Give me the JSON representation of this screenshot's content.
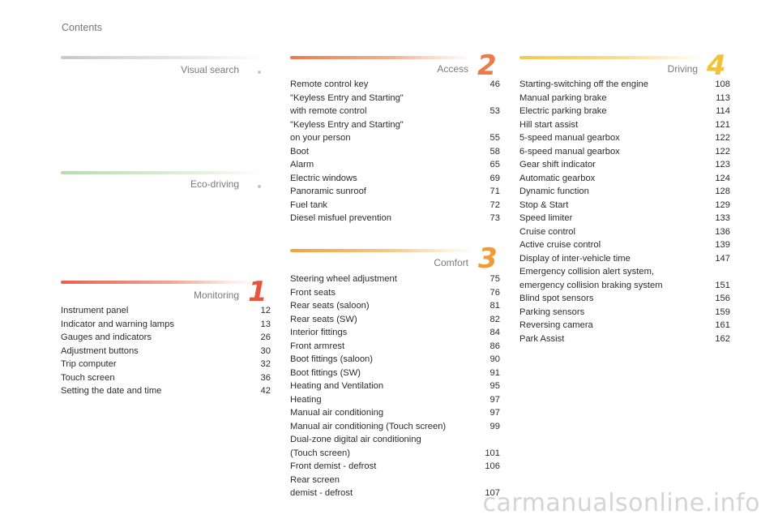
{
  "page_title": "Contents",
  "watermark": "carmanualsonline.info",
  "visual_search": {
    "title": "Visual search",
    "bar_color": "#bdbdbd"
  },
  "eco_driving": {
    "title": "Eco-driving",
    "bar_color": "#b9dcb0"
  },
  "monitoring": {
    "title": "Monitoring",
    "number": "1",
    "bar_color": "#e8604a",
    "items": [
      {
        "label": "Instrument panel",
        "page": "12"
      },
      {
        "label": "Indicator and warning lamps",
        "page": "13"
      },
      {
        "label": "Gauges and indicators",
        "page": "26"
      },
      {
        "label": "Adjustment buttons",
        "page": "30"
      },
      {
        "label": "Trip computer",
        "page": "32"
      },
      {
        "label": "Touch screen",
        "page": "36"
      },
      {
        "label": "Setting the date and time",
        "page": "42"
      }
    ]
  },
  "access": {
    "title": "Access",
    "number": "2",
    "bar_color": "#ef8a5a",
    "items": [
      {
        "label": "Remote control key",
        "page": "46"
      },
      {
        "label": "\"Keyless Entry and Starting\"\n   with remote control",
        "page": "53"
      },
      {
        "label": "\"Keyless Entry and Starting\"\n   on your person",
        "page": "55"
      },
      {
        "label": "Boot",
        "page": "58"
      },
      {
        "label": "Alarm",
        "page": "65"
      },
      {
        "label": "Electric windows",
        "page": "69"
      },
      {
        "label": "Panoramic sunroof",
        "page": "71"
      },
      {
        "label": "Fuel tank",
        "page": "72"
      },
      {
        "label": "Diesel misfuel prevention",
        "page": "73"
      }
    ]
  },
  "comfort": {
    "title": "Comfort",
    "number": "3",
    "bar_color": "#f4a13e",
    "items": [
      {
        "label": "Steering wheel adjustment",
        "page": "75"
      },
      {
        "label": "Front seats",
        "page": "76"
      },
      {
        "label": "Rear seats (saloon)",
        "page": "81"
      },
      {
        "label": "Rear seats (SW)",
        "page": "82"
      },
      {
        "label": "Interior fittings",
        "page": "84"
      },
      {
        "label": "Front armrest",
        "page": "86"
      },
      {
        "label": "Boot fittings (saloon)",
        "page": "90"
      },
      {
        "label": "Boot fittings (SW)",
        "page": "91"
      },
      {
        "label": "Heating and Ventilation",
        "page": "95"
      },
      {
        "label": "Heating",
        "page": "97"
      },
      {
        "label": "Manual air conditioning",
        "page": "97"
      },
      {
        "label": "Manual air conditioning (Touch screen)",
        "page": "99"
      },
      {
        "label": "Dual-zone digital air conditioning\n   (Touch screen)",
        "page": "101"
      },
      {
        "label": "Front demist - defrost",
        "page": "106"
      },
      {
        "label": "Rear screen\n   demist - defrost",
        "page": "107"
      }
    ]
  },
  "driving": {
    "title": "Driving",
    "number": "4",
    "bar_color": "#f6c84a",
    "items": [
      {
        "label": "Starting-switching off the engine",
        "page": "108"
      },
      {
        "label": "Manual parking brake",
        "page": "113"
      },
      {
        "label": "Electric parking brake",
        "page": "114"
      },
      {
        "label": "Hill start assist",
        "page": "121"
      },
      {
        "label": "5-speed manual gearbox",
        "page": "122"
      },
      {
        "label": "6-speed manual gearbox",
        "page": "122"
      },
      {
        "label": "Gear shift indicator",
        "page": "123"
      },
      {
        "label": "Automatic gearbox",
        "page": "124"
      },
      {
        "label": "Dynamic function",
        "page": "128"
      },
      {
        "label": "Stop & Start",
        "page": "129"
      },
      {
        "label": "Speed limiter",
        "page": "133"
      },
      {
        "label": "Cruise control",
        "page": "136"
      },
      {
        "label": "Active cruise control",
        "page": "139"
      },
      {
        "label": "Display of inter-vehicle time",
        "page": "147"
      },
      {
        "label": "Emergency collision alert system,\n    emergency collision braking system",
        "page": "151"
      },
      {
        "label": "Blind spot sensors",
        "page": "156"
      },
      {
        "label": "Parking sensors",
        "page": "159"
      },
      {
        "label": "Reversing camera",
        "page": "161"
      },
      {
        "label": "Park Assist",
        "page": "162"
      }
    ]
  }
}
